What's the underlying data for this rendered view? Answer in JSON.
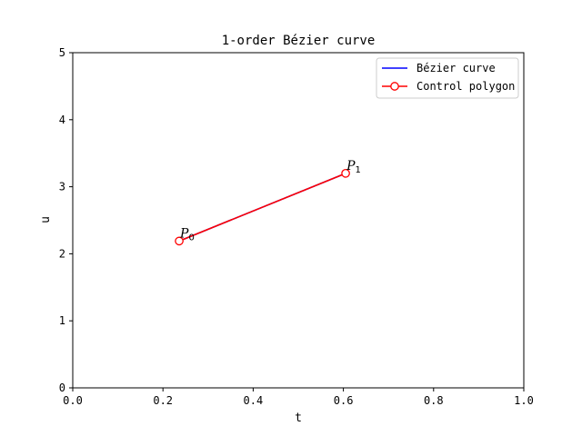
{
  "chart_data": {
    "type": "line",
    "title": "1-order Bézier curve",
    "xlabel": "t",
    "ylabel": "u",
    "xlim": [
      0.0,
      1.0
    ],
    "ylim": [
      0,
      5
    ],
    "x_ticks": [
      "0.0",
      "0.2",
      "0.4",
      "0.6",
      "0.8",
      "1.0"
    ],
    "y_ticks": [
      "0",
      "1",
      "2",
      "3",
      "4",
      "5"
    ],
    "grid": false,
    "legend_position": "top-right",
    "series": [
      {
        "name": "Bézier curve",
        "color": "#0000ff",
        "x": [
          0.236,
          0.605
        ],
        "y": [
          2.19,
          3.2
        ]
      },
      {
        "name": "Control polygon",
        "color": "#ff0000",
        "marker": "hollow-circle",
        "x": [
          0.236,
          0.605
        ],
        "y": [
          2.19,
          3.2
        ]
      }
    ],
    "annotations": [
      {
        "letter": "P",
        "subscript": "0",
        "x": 0.236,
        "y": 2.19
      },
      {
        "letter": "P",
        "subscript": "1",
        "x": 0.605,
        "y": 3.2
      }
    ]
  }
}
